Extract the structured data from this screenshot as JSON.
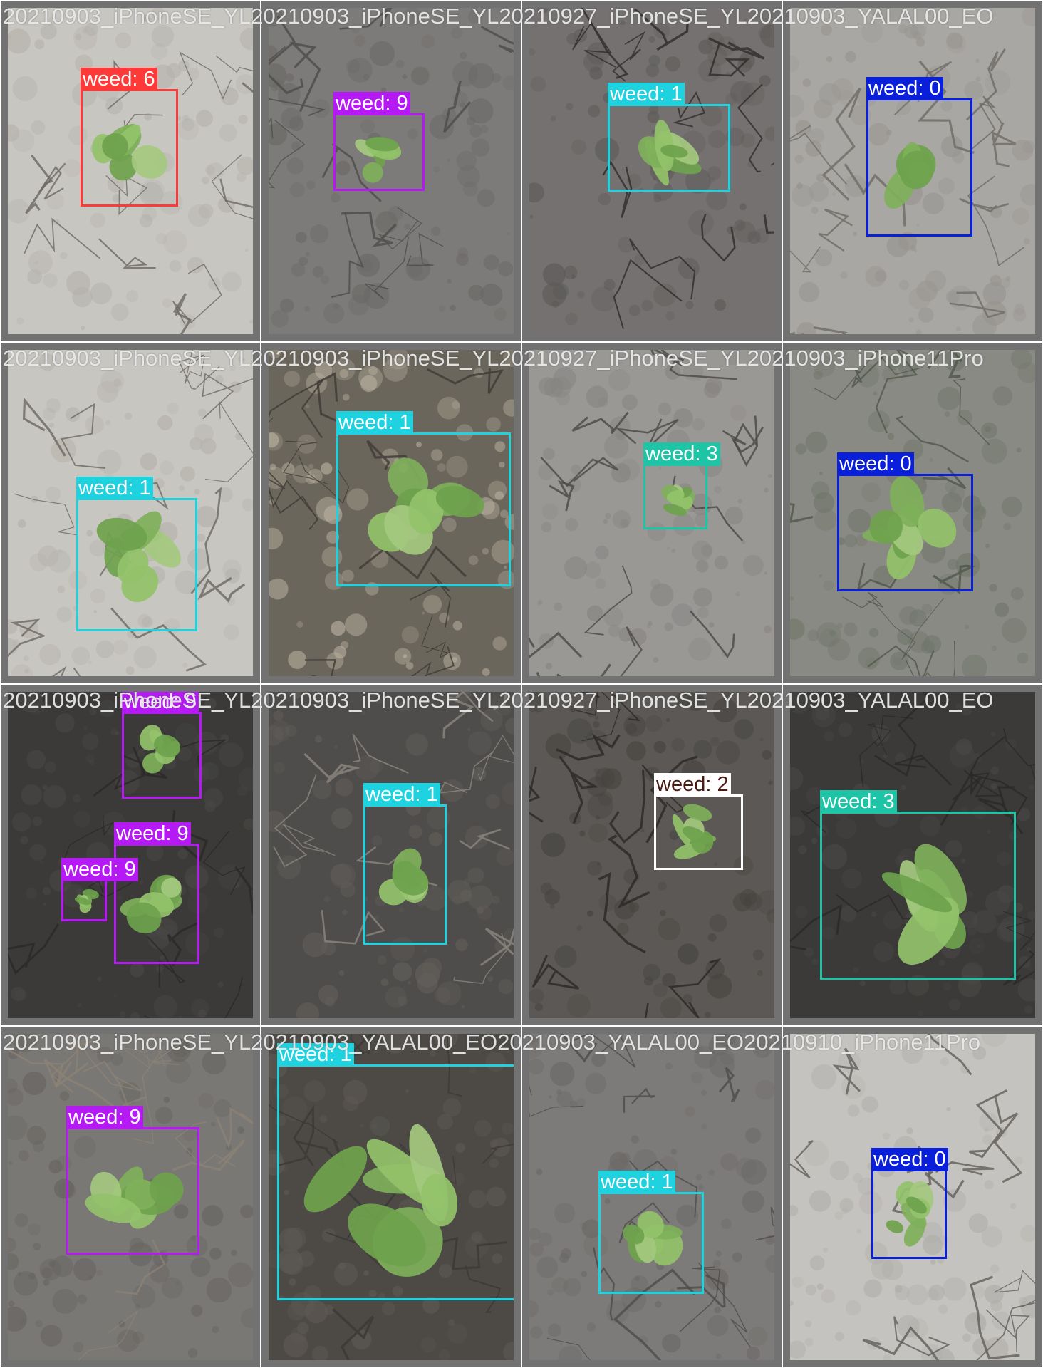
{
  "grid": {
    "cells": [
      {
        "filename": "20210903_iPhoneSE_YL20210903_iPhoneSE_YL20210927_iPhoneSE_YL20210903_YALAL00_EO",
        "soil": "light",
        "detections": [
          {
            "label": "weed: 6",
            "color": "#ff3838",
            "class_id": 6
          }
        ]
      },
      {
        "filename": "",
        "soil": "gray",
        "detections": [
          {
            "label": "weed: 9",
            "color": "#b61af4",
            "class_id": 9
          }
        ]
      },
      {
        "filename": "",
        "soil": "cracked",
        "detections": [
          {
            "label": "weed: 1",
            "color": "#1ed2df",
            "class_id": 1
          }
        ]
      },
      {
        "filename": "",
        "soil": "gray-light",
        "detections": [
          {
            "label": "weed: 0",
            "color": "#0a1fd9",
            "class_id": 0
          }
        ]
      },
      {
        "filename": "20210903_iPhoneSE_YL20210903_iPhoneSE_YL20210927_iPhoneSE_YL20210903_iPhone11Pro",
        "soil": "light",
        "detections": [
          {
            "label": "weed: 1",
            "color": "#1ed2df",
            "class_id": 1
          }
        ]
      },
      {
        "filename": "",
        "soil": "straw",
        "detections": [
          {
            "label": "weed: 1",
            "color": "#1ed2df",
            "class_id": 1
          }
        ]
      },
      {
        "filename": "",
        "soil": "cracked-light",
        "detections": [
          {
            "label": "weed: 3",
            "color": "#1ec4a6",
            "class_id": 3
          }
        ]
      },
      {
        "filename": "",
        "soil": "gray-green",
        "detections": [
          {
            "label": "weed: 0",
            "color": "#0a1fd9",
            "class_id": 0
          }
        ]
      },
      {
        "filename": "20210903_iPhoneSE_YL20210903_iPhoneSE_YL20210927_iPhoneSE_YL20210903_YALAL00_EO",
        "soil": "dark",
        "detections": [
          {
            "label": "weed: 9",
            "color": "#b61af4",
            "class_id": 9
          },
          {
            "label": "weed: 9",
            "color": "#b61af4",
            "class_id": 9
          },
          {
            "label": "weed: 9",
            "color": "#b61af4",
            "class_id": 9
          }
        ]
      },
      {
        "filename": "",
        "soil": "dark-debris",
        "detections": [
          {
            "label": "weed: 1",
            "color": "#1ed2df",
            "class_id": 1
          }
        ]
      },
      {
        "filename": "",
        "soil": "cracked-dark",
        "detections": [
          {
            "label": "weed: 2",
            "color": "#ffffff",
            "class_id": 2
          }
        ]
      },
      {
        "filename": "",
        "soil": "dark",
        "detections": [
          {
            "label": "weed: 3",
            "color": "#1ec4a6",
            "class_id": 3
          }
        ]
      },
      {
        "filename": "20210903_iPhoneSE_YL20210903_YALAL00_EO20210903_YALAL00_EO20210910_iPhone11Pro",
        "soil": "gray-debris",
        "detections": [
          {
            "label": "weed: 9",
            "color": "#b61af4",
            "class_id": 9
          }
        ]
      },
      {
        "filename": "",
        "soil": "dark-leafy",
        "detections": [
          {
            "label": "weed: 1",
            "color": "#1ed2df",
            "class_id": 1
          }
        ]
      },
      {
        "filename": "",
        "soil": "gray",
        "detections": [
          {
            "label": "weed: 1",
            "color": "#1ed2df",
            "class_id": 1
          }
        ]
      },
      {
        "filename": "",
        "soil": "light-blotch",
        "detections": [
          {
            "label": "weed: 0",
            "color": "#0a1fd9",
            "class_id": 0
          }
        ]
      }
    ]
  }
}
